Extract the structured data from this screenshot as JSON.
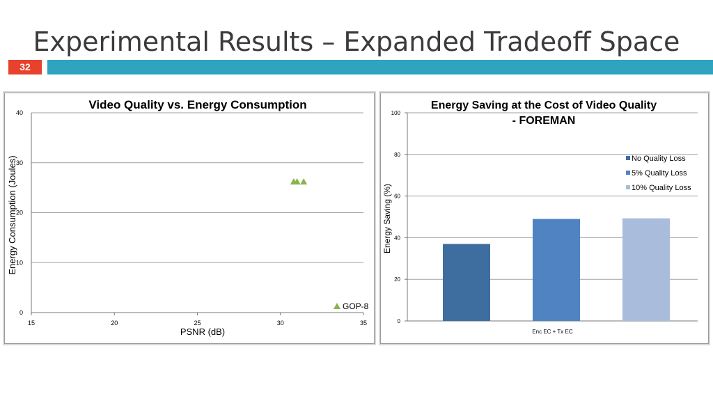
{
  "slide": {
    "title": "Experimental Results – Expanded Tradeoff Space",
    "number": "32",
    "colors": {
      "number_bg": "#e8412c",
      "accent_bar": "#2fa3c0"
    }
  },
  "chart_data": [
    {
      "type": "scatter",
      "title": "Video Quality vs. Energy Consumption",
      "xlabel": "PSNR (dB)",
      "ylabel": "Energy Consumption (Joules)",
      "xlim": [
        15,
        35
      ],
      "ylim": [
        0,
        40
      ],
      "xticks": [
        15,
        20,
        25,
        30,
        35
      ],
      "yticks": [
        0,
        10,
        20,
        30,
        40
      ],
      "grid": true,
      "legend_position": "bottom-right",
      "series": [
        {
          "name": "GOP-8",
          "color": "#8ab34a",
          "marker": "triangle",
          "points": [
            [
              30.8,
              26.2
            ],
            [
              31.0,
              26.2
            ],
            [
              31.4,
              26.2
            ]
          ]
        }
      ]
    },
    {
      "type": "bar",
      "title_line1": "Energy Saving at the Cost of Video Quality",
      "title_line2": "- FOREMAN",
      "xlabel": "",
      "ylabel": "Energy Saving (%)",
      "ylim": [
        0,
        100
      ],
      "yticks": [
        0,
        20,
        40,
        60,
        80,
        100
      ],
      "grid": true,
      "legend_position": "right",
      "categories": [
        "Enc EC + Tx EC"
      ],
      "series": [
        {
          "name": "No Quality Loss",
          "color": "#3e6da0",
          "values": [
            37
          ]
        },
        {
          "name": "5% Quality Loss",
          "color": "#5083c1",
          "values": [
            49
          ]
        },
        {
          "name": "10% Quality Loss",
          "color": "#a9bcdb",
          "values": [
            49.3
          ]
        }
      ]
    }
  ]
}
